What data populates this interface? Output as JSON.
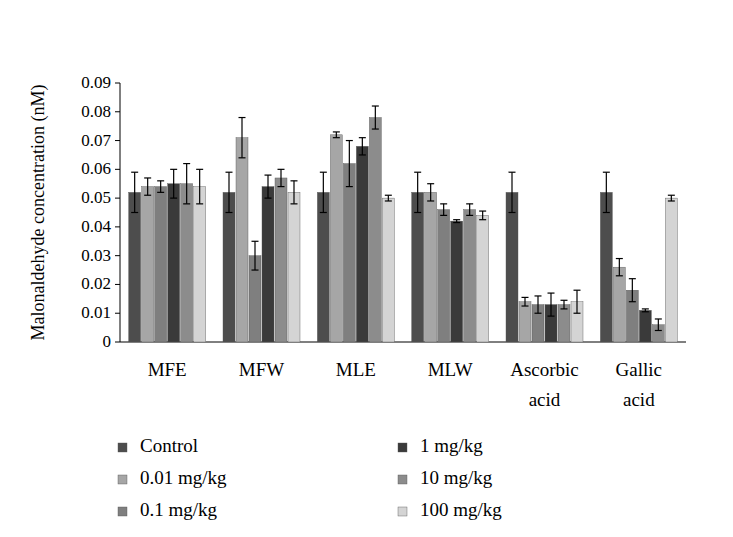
{
  "chart_data": {
    "type": "bar",
    "y_label": "Malonaldehyde concentration (nM)",
    "categories": [
      "MFE",
      "MFW",
      "MLE",
      "MLW",
      "Ascorbic acid",
      "Gallic acid"
    ],
    "ylim": [
      0,
      0.09
    ],
    "yticks": [
      0,
      0.01,
      0.02,
      0.03,
      0.04,
      0.05,
      0.06,
      0.07,
      0.08,
      0.09
    ],
    "grid": false,
    "legend": "bottom",
    "series": [
      {
        "name": "Control",
        "color": "#4d4d4d",
        "values": [
          0.052,
          0.052,
          0.052,
          0.052,
          0.052,
          0.052
        ],
        "errors": [
          0.007,
          0.007,
          0.007,
          0.007,
          0.007,
          0.007
        ]
      },
      {
        "name": "0.01 mg/kg",
        "color": "#a6a6a6",
        "values": [
          0.054,
          0.071,
          0.072,
          0.052,
          0.014,
          0.026
        ],
        "errors": [
          0.003,
          0.007,
          0.001,
          0.003,
          0.0015,
          0.003
        ]
      },
      {
        "name": "0.1 mg/kg",
        "color": "#7f7f7f",
        "values": [
          0.054,
          0.03,
          0.062,
          0.046,
          0.013,
          0.018
        ],
        "errors": [
          0.002,
          0.005,
          0.008,
          0.002,
          0.003,
          0.004
        ]
      },
      {
        "name": "1 mg/kg",
        "color": "#3a3a3a",
        "values": [
          0.055,
          0.054,
          0.068,
          0.042,
          0.013,
          0.011
        ],
        "errors": [
          0.005,
          0.004,
          0.003,
          0.0005,
          0.004,
          0.0005
        ]
      },
      {
        "name": "10 mg/kg",
        "color": "#8c8c8c",
        "values": [
          0.055,
          0.057,
          0.078,
          0.046,
          0.013,
          0.006
        ],
        "errors": [
          0.007,
          0.003,
          0.004,
          0.002,
          0.0015,
          0.002
        ]
      },
      {
        "name": "100 mg/kg",
        "color": "#d4d4d4",
        "values": [
          0.054,
          0.052,
          0.05,
          0.044,
          0.014,
          0.05
        ],
        "errors": [
          0.006,
          0.004,
          0.001,
          0.0015,
          0.004,
          0.001
        ]
      }
    ]
  }
}
